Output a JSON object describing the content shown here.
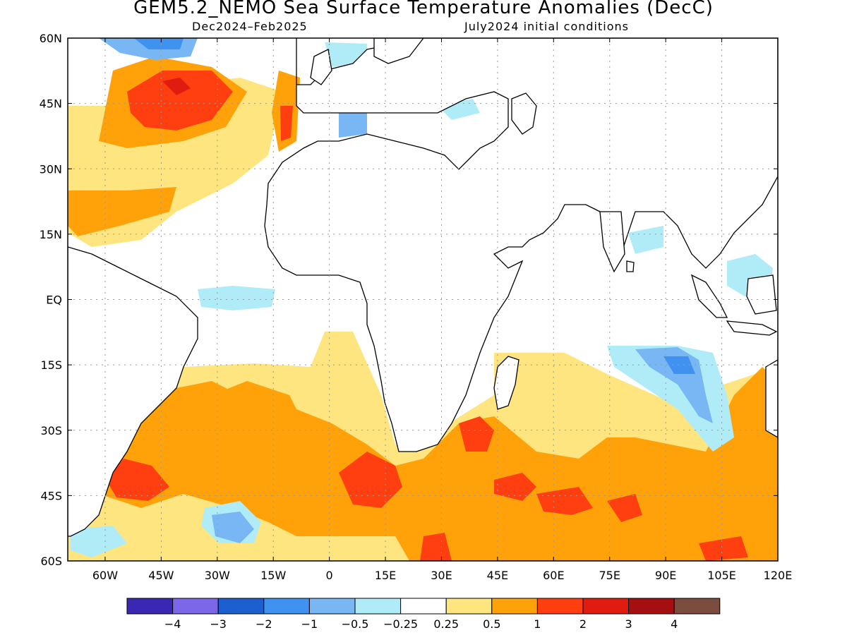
{
  "title": "GEM5.2_NEMO Sea Surface Temperature Anomalies (DecC)",
  "subtitle_left": "Dec2024–Feb2025",
  "subtitle_right": "July2024 initial conditions",
  "lat_labels": [
    "60N",
    "45N",
    "30N",
    "15N",
    "EQ",
    "15S",
    "30S",
    "45S",
    "60S"
  ],
  "lat_values": [
    60,
    45,
    30,
    15,
    0,
    -15,
    -30,
    -45,
    -60
  ],
  "lon_labels": [
    "60W",
    "45W",
    "30W",
    "15W",
    "0",
    "15E",
    "30E",
    "45E",
    "60E",
    "75E",
    "90E",
    "105E",
    "120E"
  ],
  "lon_values": [
    -60,
    -45,
    -30,
    -15,
    0,
    15,
    30,
    45,
    60,
    75,
    90,
    105,
    120
  ],
  "map_extent": {
    "lon": [
      -70,
      120
    ],
    "lat": [
      -60,
      60
    ]
  },
  "colorbar": {
    "colors": [
      "#3a28b4",
      "#7b67e8",
      "#1c5fce",
      "#3f92f0",
      "#78b6f4",
      "#b0ecf7",
      "#ffffff",
      "#ffe57f",
      "#ffa20a",
      "#ff3f10",
      "#e01c10",
      "#a50f0f",
      "#7a4d3e"
    ],
    "labels": [
      "−4",
      "−3",
      "−2",
      "−1",
      "−0.5",
      "−0.25",
      "0.25",
      "0.5",
      "1",
      "2",
      "3",
      "4"
    ]
  }
}
